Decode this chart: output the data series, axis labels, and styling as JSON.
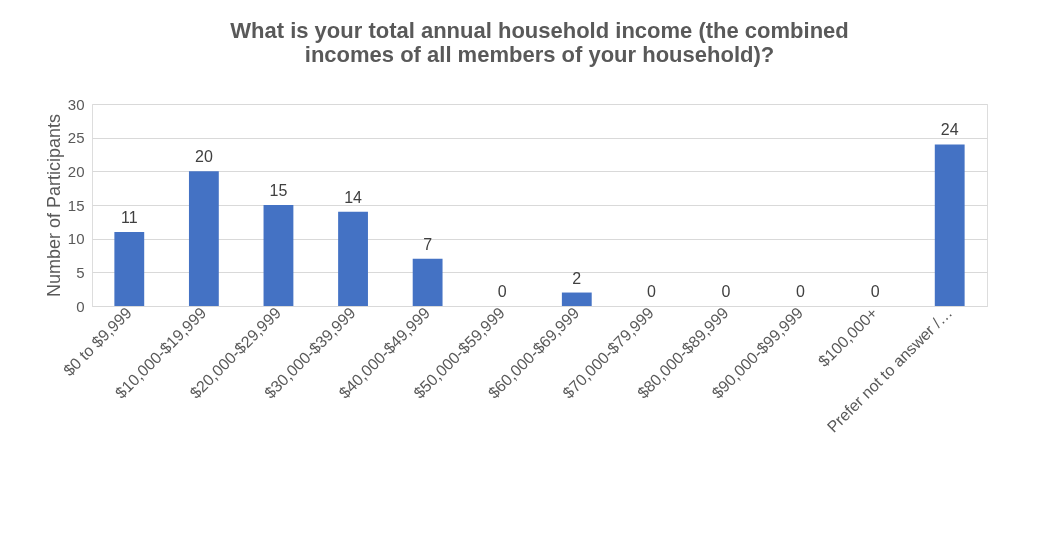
{
  "chart_data": {
    "type": "bar",
    "title": "What is your total annual household income (the combined incomes of all members of your household)?",
    "ylabel": "Number of Participants",
    "categories": [
      "$0 to $9,999",
      "$10,000-$19,999",
      "$20,000-$29,999",
      "$30,000-$39,999",
      "$40,000-$49,999",
      "$50,000-$59,999",
      "$60,000-$69,999",
      "$70,000-$79,999",
      "$80,000-$89,999",
      "$90,000-$99,999",
      "$100,000+",
      "Prefer not to answer /…"
    ],
    "values": [
      11,
      20,
      15,
      14,
      7,
      0,
      2,
      0,
      0,
      0,
      0,
      24
    ],
    "color": "#4472c4",
    "ylim": [
      0,
      30
    ],
    "yticks": [
      0,
      5,
      10,
      15,
      20,
      25,
      30
    ],
    "grid": "y",
    "data_labels": true
  }
}
